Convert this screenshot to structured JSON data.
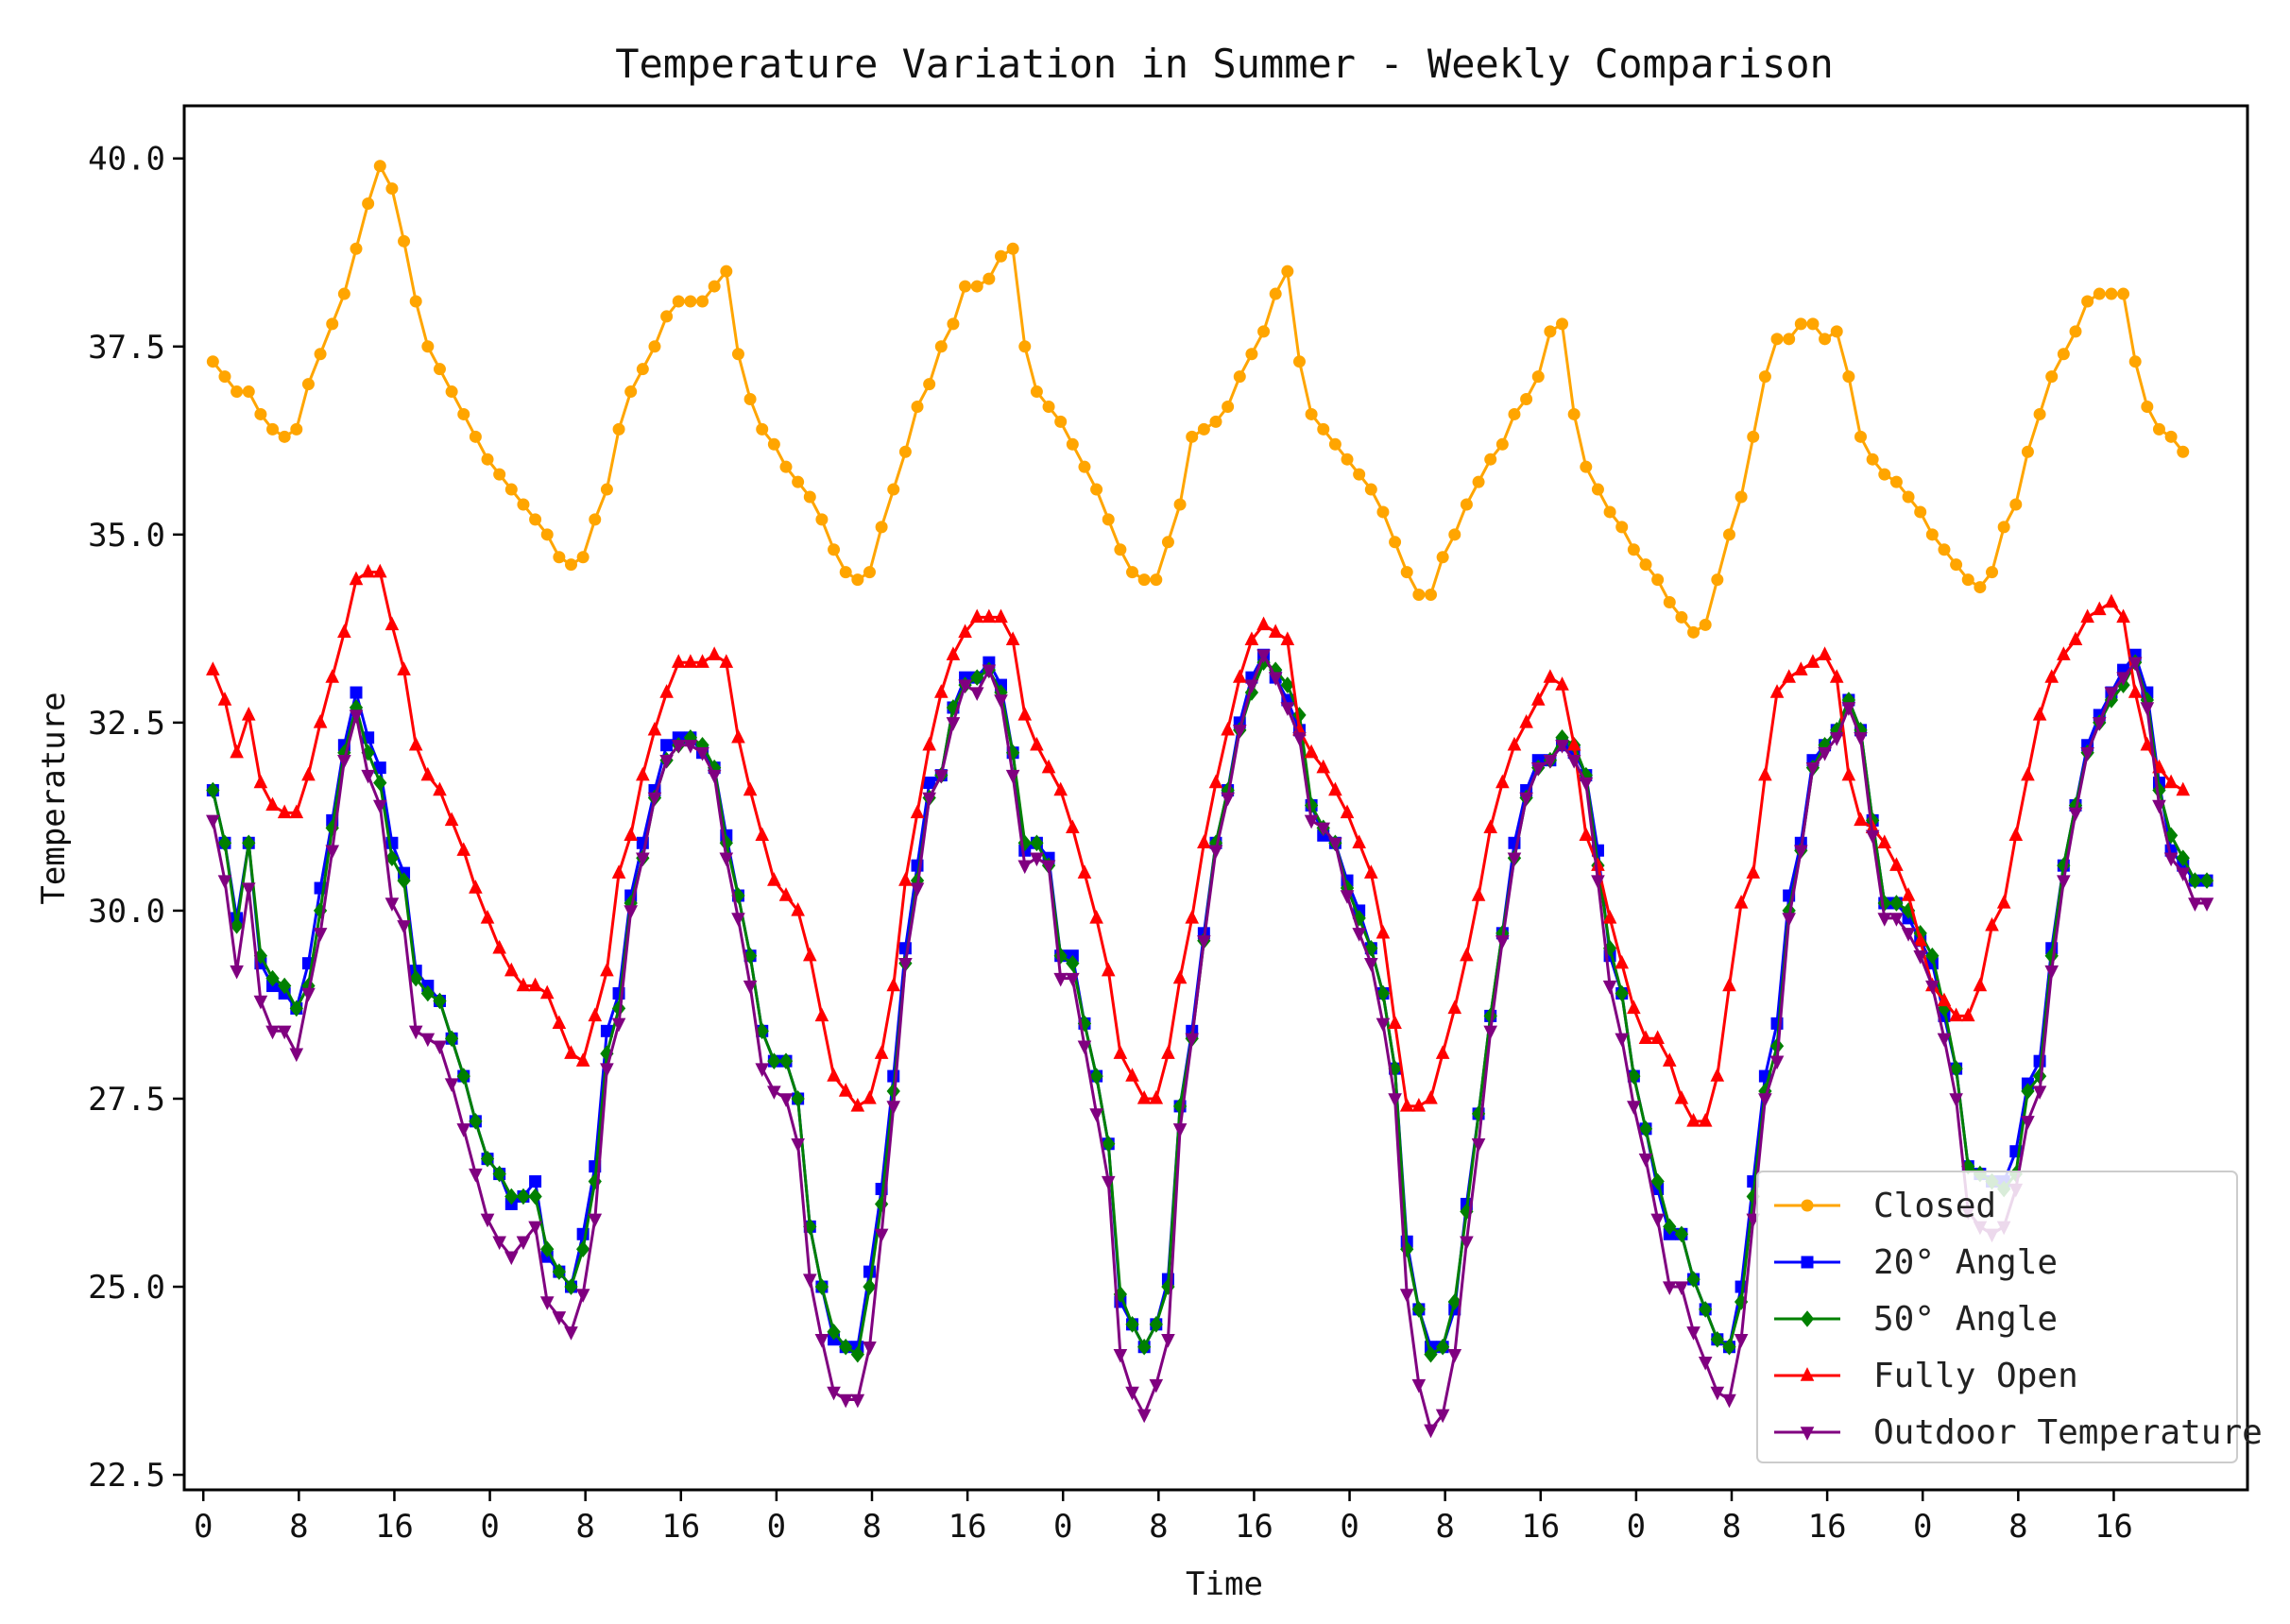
{
  "chart_data": {
    "type": "line",
    "title": "Temperature Variation in Summer - Weekly Comparison",
    "xlabel": "Time",
    "ylabel": "Temperature",
    "xlim": [
      -2,
      214
    ],
    "ylim": [
      22.3,
      40.7
    ],
    "yticks": [
      22.5,
      25.0,
      27.5,
      30.0,
      32.5,
      35.0,
      37.5,
      40.0
    ],
    "ytick_labels": [
      "22.5",
      "25.0",
      "27.5",
      "30.0",
      "32.5",
      "35.0",
      "37.5",
      "40.0"
    ],
    "xticks": [
      0,
      10,
      20,
      30,
      40,
      50,
      60,
      70,
      80,
      90,
      100,
      110,
      120,
      130,
      140,
      150,
      160,
      170,
      180,
      190,
      200
    ],
    "xtick_labels": [
      "0",
      "8",
      "16",
      "0",
      "8",
      "16",
      "0",
      "8",
      "16",
      "0",
      "8",
      "16",
      "0",
      "8",
      "16",
      "0",
      "8",
      "16",
      "0",
      "8",
      "16"
    ],
    "x_start": 1,
    "x_step": 1.25,
    "legend_position": "lower-right",
    "grid": false,
    "series": [
      {
        "name": "Closed",
        "color": "#FFA500",
        "marker": "circle",
        "values": [
          37.3,
          37.1,
          36.9,
          36.9,
          36.6,
          36.4,
          36.3,
          36.4,
          37.0,
          37.4,
          37.8,
          38.2,
          38.8,
          39.4,
          39.9,
          39.6,
          38.9,
          38.1,
          37.5,
          37.2,
          36.9,
          36.6,
          36.3,
          36.0,
          35.8,
          35.6,
          35.4,
          35.2,
          35.0,
          34.7,
          34.6,
          34.7,
          35.2,
          35.6,
          36.4,
          36.9,
          37.2,
          37.5,
          37.9,
          38.1,
          38.1,
          38.1,
          38.3,
          38.5,
          37.4,
          36.8,
          36.4,
          36.2,
          35.9,
          35.7,
          35.5,
          35.2,
          34.8,
          34.5,
          34.4,
          34.5,
          35.1,
          35.6,
          36.1,
          36.7,
          37.0,
          37.5,
          37.8,
          38.3,
          38.3,
          38.4,
          38.7,
          38.8,
          37.5,
          36.9,
          36.7,
          36.5,
          36.2,
          35.9,
          35.6,
          35.2,
          34.8,
          34.5,
          34.4,
          34.4,
          34.9,
          35.4,
          36.3,
          36.4,
          36.5,
          36.7,
          37.1,
          37.4,
          37.7,
          38.2,
          38.5,
          37.3,
          36.6,
          36.4,
          36.2,
          36.0,
          35.8,
          35.6,
          35.3,
          34.9,
          34.5,
          34.2,
          34.2,
          34.7,
          35.0,
          35.4,
          35.7,
          36.0,
          36.2,
          36.6,
          36.8,
          37.1,
          37.7,
          37.8,
          36.6,
          35.9,
          35.6,
          35.3,
          35.1,
          34.8,
          34.6,
          34.4,
          34.1,
          33.9,
          33.7,
          33.8,
          34.4,
          35.0,
          35.5,
          36.3,
          37.1,
          37.6,
          37.6,
          37.8,
          37.8,
          37.6,
          37.7,
          37.1,
          36.3,
          36.0,
          35.8,
          35.7,
          35.5,
          35.3,
          35.0,
          34.8,
          34.6,
          34.4,
          34.3,
          34.5,
          35.1,
          35.4,
          36.1,
          36.6,
          37.1,
          37.4,
          37.7,
          38.1,
          38.2,
          38.2,
          38.2,
          37.3,
          36.7,
          36.4,
          36.3,
          36.1
        ]
      },
      {
        "name": "20° Angle",
        "color": "#0000FF",
        "marker": "square",
        "values": [
          31.6,
          30.9,
          29.9,
          30.9,
          29.3,
          29.0,
          28.9,
          28.7,
          29.3,
          30.3,
          31.2,
          32.2,
          32.9,
          32.3,
          31.9,
          30.9,
          30.5,
          29.2,
          29.0,
          28.8,
          28.3,
          27.8,
          27.2,
          26.7,
          26.5,
          26.1,
          26.2,
          26.4,
          25.4,
          25.2,
          25.0,
          25.7,
          26.6,
          28.4,
          28.9,
          30.2,
          30.9,
          31.6,
          32.2,
          32.3,
          32.3,
          32.1,
          31.9,
          31.0,
          30.2,
          29.4,
          28.4,
          28.0,
          28.0,
          27.5,
          25.8,
          25.0,
          24.3,
          24.2,
          24.2,
          25.2,
          26.3,
          27.8,
          29.5,
          30.6,
          31.7,
          31.8,
          32.7,
          33.1,
          33.1,
          33.3,
          33.0,
          32.1,
          30.8,
          30.9,
          30.7,
          29.4,
          29.4,
          28.5,
          27.8,
          26.9,
          24.8,
          24.5,
          24.2,
          24.5,
          25.1,
          27.4,
          28.4,
          29.7,
          30.9,
          31.6,
          32.5,
          33.1,
          33.4,
          33.1,
          32.8,
          32.4,
          31.4,
          31.0,
          30.9,
          30.4,
          30.0,
          29.5,
          28.9,
          27.9,
          25.6,
          24.7,
          24.2,
          24.2,
          24.7,
          26.1,
          27.3,
          28.6,
          29.7,
          30.9,
          31.6,
          32.0,
          32.0,
          32.2,
          32.1,
          31.8,
          30.8,
          29.4,
          28.9,
          27.8,
          27.1,
          26.3,
          25.7,
          25.7,
          25.1,
          24.7,
          24.3,
          24.2,
          25.0,
          26.4,
          27.8,
          28.5,
          30.2,
          30.9,
          32.0,
          32.2,
          32.4,
          32.8,
          32.4,
          31.2,
          30.1,
          30.1,
          29.9,
          29.6,
          29.3,
          28.6,
          27.9,
          26.6,
          26.5,
          26.4,
          26.4,
          26.8,
          27.7,
          28.0,
          29.5,
          30.6,
          31.4,
          32.2,
          32.6,
          32.9,
          33.2,
          33.4,
          32.9,
          31.7,
          30.8,
          30.6,
          30.4,
          30.4
        ]
      },
      {
        "name": "50° Angle",
        "color": "#008000",
        "marker": "diamond",
        "values": [
          31.6,
          30.9,
          29.8,
          30.9,
          29.4,
          29.1,
          29.0,
          28.7,
          29.0,
          30.0,
          31.1,
          32.1,
          32.7,
          32.1,
          31.7,
          30.7,
          30.4,
          29.1,
          28.9,
          28.8,
          28.3,
          27.8,
          27.2,
          26.7,
          26.5,
          26.2,
          26.2,
          26.2,
          25.5,
          25.2,
          25.0,
          25.5,
          26.4,
          28.1,
          28.7,
          30.1,
          30.7,
          31.5,
          32.0,
          32.2,
          32.3,
          32.2,
          31.9,
          30.9,
          30.2,
          29.4,
          28.4,
          28.0,
          28.0,
          27.5,
          25.8,
          25.0,
          24.4,
          24.2,
          24.1,
          25.0,
          26.1,
          27.6,
          29.3,
          30.4,
          31.5,
          31.8,
          32.7,
          33.0,
          33.1,
          33.2,
          32.9,
          32.1,
          30.9,
          30.9,
          30.6,
          29.4,
          29.3,
          28.5,
          27.8,
          26.9,
          24.9,
          24.5,
          24.2,
          24.5,
          25.0,
          27.4,
          28.3,
          29.6,
          30.9,
          31.6,
          32.4,
          32.9,
          33.3,
          33.2,
          33.0,
          32.6,
          31.4,
          31.1,
          30.9,
          30.3,
          29.9,
          29.5,
          28.9,
          27.9,
          25.5,
          24.7,
          24.1,
          24.2,
          24.8,
          26.0,
          27.3,
          28.6,
          29.7,
          30.7,
          31.5,
          31.9,
          32.0,
          32.3,
          32.2,
          31.8,
          30.6,
          29.5,
          28.9,
          27.8,
          27.1,
          26.4,
          25.8,
          25.7,
          25.1,
          24.7,
          24.3,
          24.2,
          24.8,
          26.2,
          27.6,
          28.2,
          30.0,
          30.8,
          31.9,
          32.2,
          32.4,
          32.8,
          32.4,
          31.2,
          30.1,
          30.1,
          30.0,
          29.7,
          29.4,
          28.7,
          27.9,
          26.6,
          26.5,
          26.4,
          26.3,
          26.5,
          27.6,
          27.8,
          29.4,
          30.6,
          31.4,
          32.1,
          32.5,
          32.8,
          33.0,
          33.3,
          32.8,
          31.6,
          31.0,
          30.7,
          30.4,
          30.4
        ]
      },
      {
        "name": "Fully Open",
        "color": "#FF0000",
        "marker": "triangle-up",
        "values": [
          33.2,
          32.8,
          32.1,
          32.6,
          31.7,
          31.4,
          31.3,
          31.3,
          31.8,
          32.5,
          33.1,
          33.7,
          34.4,
          34.5,
          34.5,
          33.8,
          33.2,
          32.2,
          31.8,
          31.6,
          31.2,
          30.8,
          30.3,
          29.9,
          29.5,
          29.2,
          29.0,
          29.0,
          28.9,
          28.5,
          28.1,
          28.0,
          28.6,
          29.2,
          30.5,
          31.0,
          31.8,
          32.4,
          32.9,
          33.3,
          33.3,
          33.3,
          33.4,
          33.3,
          32.3,
          31.6,
          31.0,
          30.4,
          30.2,
          30.0,
          29.4,
          28.6,
          27.8,
          27.6,
          27.4,
          27.5,
          28.1,
          29.0,
          30.4,
          31.3,
          32.2,
          32.9,
          33.4,
          33.7,
          33.9,
          33.9,
          33.9,
          33.6,
          32.6,
          32.2,
          31.9,
          31.6,
          31.1,
          30.5,
          29.9,
          29.2,
          28.1,
          27.8,
          27.5,
          27.5,
          28.1,
          29.1,
          29.9,
          30.9,
          31.7,
          32.4,
          33.1,
          33.6,
          33.8,
          33.7,
          33.6,
          32.4,
          32.1,
          31.9,
          31.6,
          31.3,
          30.9,
          30.5,
          29.7,
          28.5,
          27.4,
          27.4,
          27.5,
          28.1,
          28.7,
          29.4,
          30.2,
          31.1,
          31.7,
          32.2,
          32.5,
          32.8,
          33.1,
          33.0,
          32.2,
          31.0,
          30.6,
          29.9,
          29.3,
          28.7,
          28.3,
          28.3,
          28.0,
          27.5,
          27.2,
          27.2,
          27.8,
          29.0,
          30.1,
          30.5,
          31.8,
          32.9,
          33.1,
          33.2,
          33.3,
          33.4,
          33.1,
          31.8,
          31.2,
          31.1,
          30.9,
          30.6,
          30.2,
          29.6,
          29.0,
          28.8,
          28.6,
          28.6,
          29.0,
          29.8,
          30.1,
          31.0,
          31.8,
          32.6,
          33.1,
          33.4,
          33.6,
          33.9,
          34.0,
          34.1,
          33.9,
          32.9,
          32.2,
          31.9,
          31.7,
          31.6
        ]
      },
      {
        "name": "Outdoor Temperature",
        "color": "#800080",
        "marker": "triangle-down",
        "values": [
          31.2,
          30.4,
          29.2,
          30.3,
          28.8,
          28.4,
          28.4,
          28.1,
          28.9,
          29.7,
          30.8,
          32.0,
          32.6,
          31.8,
          31.4,
          30.1,
          29.8,
          28.4,
          28.3,
          28.2,
          27.7,
          27.1,
          26.5,
          25.9,
          25.6,
          25.4,
          25.6,
          25.8,
          24.8,
          24.6,
          24.4,
          24.9,
          25.9,
          27.9,
          28.5,
          30.0,
          30.7,
          31.5,
          32.0,
          32.2,
          32.2,
          32.1,
          31.8,
          30.7,
          29.9,
          29.0,
          27.9,
          27.6,
          27.5,
          26.9,
          25.1,
          24.3,
          23.6,
          23.5,
          23.5,
          24.2,
          25.7,
          27.4,
          29.3,
          30.3,
          31.5,
          31.8,
          32.5,
          33.0,
          32.9,
          33.2,
          32.8,
          31.8,
          30.6,
          30.7,
          30.6,
          29.1,
          29.1,
          28.2,
          27.3,
          26.4,
          24.1,
          23.6,
          23.3,
          23.7,
          24.3,
          27.1,
          28.3,
          29.6,
          30.8,
          31.5,
          32.4,
          33.0,
          33.4,
          33.1,
          32.7,
          32.3,
          31.2,
          31.1,
          30.9,
          30.2,
          29.7,
          29.3,
          28.5,
          27.5,
          24.9,
          23.7,
          23.1,
          23.3,
          24.1,
          25.6,
          26.9,
          28.4,
          29.6,
          30.7,
          31.5,
          31.9,
          32.0,
          32.2,
          32.0,
          31.7,
          30.4,
          29.0,
          28.3,
          27.4,
          26.7,
          25.9,
          25.0,
          25.0,
          24.4,
          24.0,
          23.6,
          23.5,
          24.3,
          25.9,
          27.5,
          28.0,
          29.9,
          30.8,
          31.9,
          32.1,
          32.3,
          32.7,
          32.3,
          31.0,
          29.9,
          29.9,
          29.7,
          29.4,
          29.0,
          28.3,
          27.5,
          26.0,
          25.8,
          25.7,
          25.8,
          26.3,
          27.2,
          27.6,
          29.2,
          30.4,
          31.3,
          32.1,
          32.5,
          32.9,
          33.1,
          33.3,
          32.7,
          31.4,
          30.7,
          30.5,
          30.1,
          30.1
        ]
      }
    ]
  }
}
